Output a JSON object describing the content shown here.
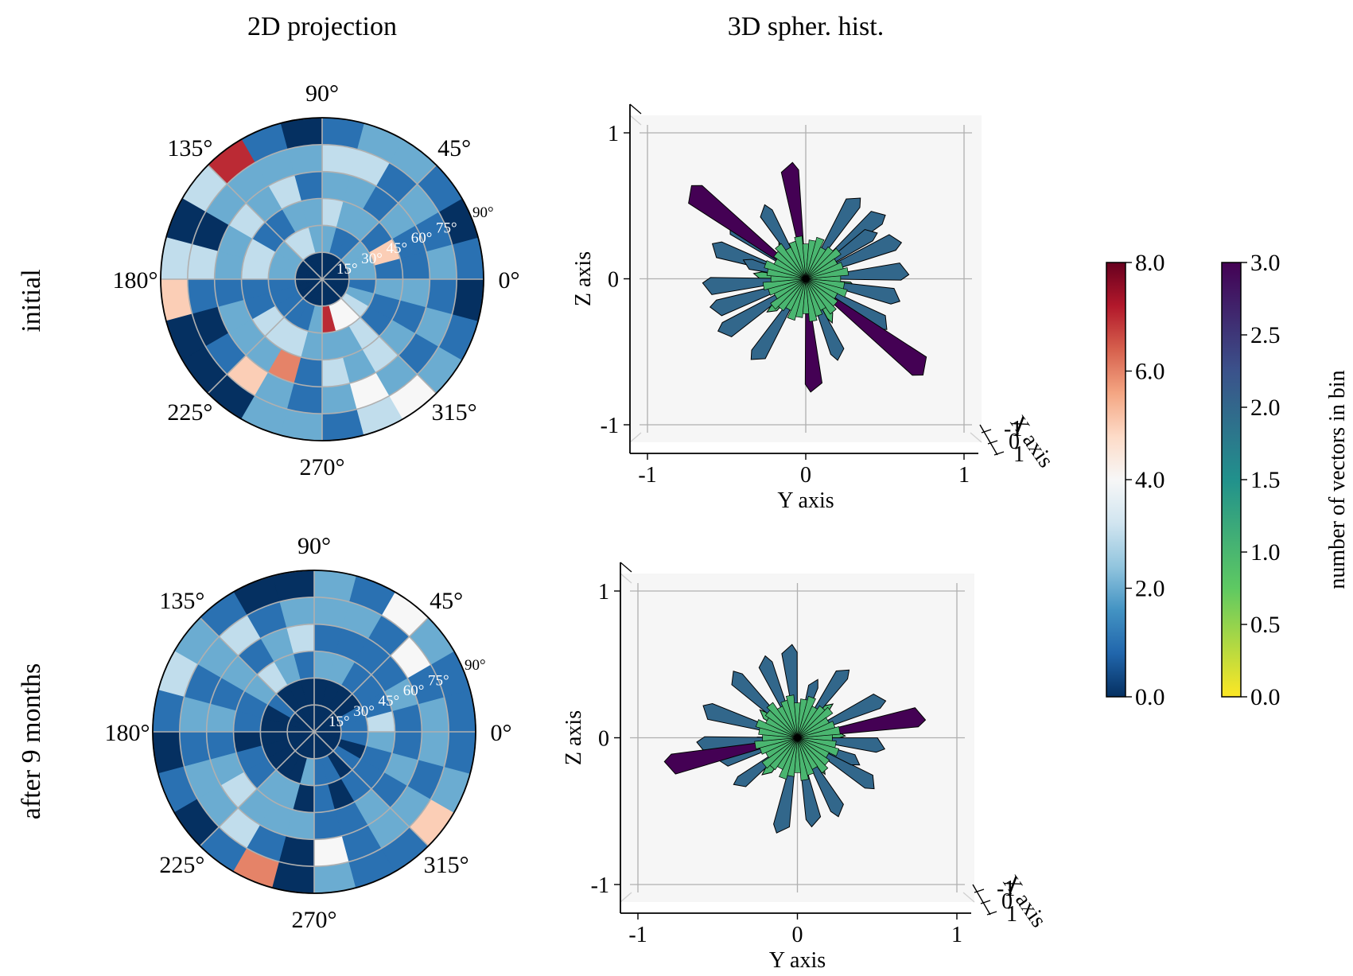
{
  "column_titles": [
    "2D projection",
    "3D spher. hist."
  ],
  "row_labels": [
    "initial",
    "after 9 months"
  ],
  "chart_data": [
    {
      "type": "heatmap",
      "projection": "polar",
      "panel": "initial / 2D projection",
      "azimuth_tick_labels": [
        "0°",
        "45°",
        "90°",
        "135°",
        "180°",
        "225°",
        "270°",
        "315°"
      ],
      "polar_ring_labels": [
        "15°",
        "30°",
        "45°",
        "60°",
        "75°",
        "90°"
      ],
      "azimuth_bins": 24,
      "polar_bins": 6,
      "colormap": "RdBu_r",
      "color_range": [
        0,
        8
      ],
      "counts": [
        [
          0,
          0,
          0,
          0,
          0,
          0,
          0,
          0,
          0,
          0,
          0,
          0,
          0,
          0,
          0,
          0,
          0,
          0,
          0,
          0,
          0,
          0,
          0,
          0
        ],
        [
          2,
          2,
          2,
          1,
          1,
          2,
          2,
          3,
          3,
          2,
          2,
          2,
          1,
          1,
          1,
          1,
          1,
          2,
          7,
          4,
          4,
          3,
          2,
          1
        ],
        [
          1,
          5,
          1,
          2,
          2,
          3,
          2,
          2,
          1,
          1,
          3,
          3,
          1,
          1,
          3,
          3,
          3,
          2,
          2,
          2,
          3,
          1,
          1,
          2
        ],
        [
          1,
          1,
          2,
          1,
          2,
          2,
          1,
          3,
          2,
          3,
          2,
          2,
          1,
          2,
          2,
          2,
          6,
          1,
          3,
          2,
          3,
          2,
          1,
          2
        ],
        [
          2,
          1,
          2,
          1,
          3,
          3,
          2,
          2,
          2,
          2,
          0,
          3,
          1,
          0,
          1,
          5,
          2,
          1,
          2,
          4,
          2,
          1,
          2,
          1
        ],
        [
          1,
          0,
          1,
          2,
          2,
          1,
          0,
          1,
          7,
          3,
          0,
          3,
          5,
          0,
          0,
          0,
          2,
          2,
          1,
          3,
          4,
          2,
          1,
          0
        ]
      ]
    },
    {
      "type": "heatmap",
      "projection": "polar",
      "panel": "after 9 months / 2D projection",
      "azimuth_tick_labels": [
        "0°",
        "45°",
        "90°",
        "135°",
        "180°",
        "225°",
        "270°",
        "315°"
      ],
      "polar_ring_labels": [
        "15°",
        "30°",
        "45°",
        "60°",
        "75°",
        "90°"
      ],
      "azimuth_bins": 24,
      "polar_bins": 6,
      "colormap": "RdBu_r",
      "color_range": [
        0,
        8
      ],
      "counts": [
        [
          0,
          0,
          0,
          0,
          0,
          0,
          0,
          0,
          0,
          0,
          0,
          0,
          0,
          0,
          0,
          0,
          0,
          0,
          0,
          0,
          0,
          0,
          0,
          0
        ],
        [
          1,
          1,
          0,
          0,
          0,
          0,
          0,
          0,
          0,
          1,
          0,
          0,
          0,
          0,
          0,
          0,
          0,
          2,
          1,
          1,
          0,
          1,
          0,
          1
        ],
        [
          3,
          1,
          1,
          1,
          2,
          2,
          1,
          2,
          3,
          2,
          1,
          1,
          0,
          1,
          1,
          2,
          2,
          0,
          1,
          0,
          1,
          1,
          1,
          2
        ],
        [
          1,
          2,
          1,
          1,
          1,
          1,
          3,
          2,
          1,
          2,
          1,
          2,
          1,
          2,
          3,
          2,
          2,
          2,
          1,
          1,
          2,
          1,
          2,
          1
        ],
        [
          2,
          1,
          4,
          1,
          2,
          2,
          2,
          1,
          3,
          2,
          1,
          2,
          1,
          2,
          2,
          3,
          1,
          0,
          4,
          1,
          2,
          2,
          1,
          2
        ],
        [
          1,
          1,
          2,
          4,
          1,
          2,
          0,
          0,
          1,
          2,
          3,
          1,
          0,
          1,
          0,
          1,
          6,
          0,
          2,
          1,
          1,
          5,
          2,
          1
        ]
      ]
    },
    {
      "type": "other",
      "description_type": "3D spherical histogram",
      "panel": "initial / 3D spher. hist.",
      "xlabel": "Y axis",
      "ylabel": "Z axis",
      "depth_label": "X axis",
      "x_ticks": [
        "-1",
        "0",
        "1"
      ],
      "y_ticks": [
        "-1",
        "0",
        "1"
      ],
      "depth_ticks": [
        "-1",
        "0",
        "1"
      ],
      "xlim": [
        -1,
        1
      ],
      "ylim": [
        -1,
        1
      ],
      "colormap": "viridis_r",
      "color_range": [
        0,
        3
      ],
      "vectors": [
        {
          "y": -0.7,
          "z": 0.58,
          "count": 3
        },
        {
          "y": -0.1,
          "z": 0.74,
          "count": 3
        },
        {
          "y": 0.05,
          "z": -0.72,
          "count": 3
        },
        {
          "y": 0.72,
          "z": -0.6,
          "count": 3
        },
        {
          "y": -0.55,
          "z": 0.2,
          "count": 2
        },
        {
          "y": -0.6,
          "z": -0.05,
          "count": 2
        },
        {
          "y": -0.55,
          "z": -0.2,
          "count": 2
        },
        {
          "y": -0.3,
          "z": -0.52,
          "count": 2
        },
        {
          "y": -0.45,
          "z": 0.35,
          "count": 2
        },
        {
          "y": -0.25,
          "z": 0.45,
          "count": 2
        },
        {
          "y": 0.3,
          "z": 0.52,
          "count": 2
        },
        {
          "y": 0.45,
          "z": 0.42,
          "count": 2
        },
        {
          "y": 0.55,
          "z": 0.25,
          "count": 2
        },
        {
          "y": 0.6,
          "z": 0.05,
          "count": 2
        },
        {
          "y": 0.55,
          "z": -0.12,
          "count": 2
        },
        {
          "y": 0.48,
          "z": -0.3,
          "count": 2
        },
        {
          "y": 0.2,
          "z": -0.5,
          "count": 2
        },
        {
          "y": -0.5,
          "z": -0.35,
          "count": 2
        },
        {
          "y": 0.4,
          "z": 0.3,
          "count": 2
        },
        {
          "y": -0.35,
          "z": 0.1,
          "count": 2
        },
        {
          "y": 0.25,
          "z": 0.2,
          "count": 1
        },
        {
          "y": -0.2,
          "z": -0.2,
          "count": 1
        },
        {
          "y": 0.15,
          "z": -0.25,
          "count": 1
        },
        {
          "y": -0.15,
          "z": 0.25,
          "count": 1
        },
        {
          "y": 0.28,
          "z": -0.05,
          "count": 1
        },
        {
          "y": -0.28,
          "z": 0.02,
          "count": 1
        }
      ]
    },
    {
      "type": "other",
      "description_type": "3D spherical histogram",
      "panel": "after 9 months / 3D spher. hist.",
      "xlabel": "Y axis",
      "ylabel": "Z axis",
      "depth_label": "X axis",
      "x_ticks": [
        "-1",
        "0",
        "1"
      ],
      "y_ticks": [
        "-1",
        "0",
        "1"
      ],
      "depth_ticks": [
        "-1",
        "0",
        "1"
      ],
      "xlim": [
        -1,
        1
      ],
      "ylim": [
        -1,
        1
      ],
      "colormap": "viridis_r",
      "color_range": [
        0,
        3
      ],
      "vectors": [
        {
          "y": -0.78,
          "z": -0.18,
          "count": 3
        },
        {
          "y": 0.75,
          "z": 0.14,
          "count": 3
        },
        {
          "y": -0.05,
          "z": 0.58,
          "count": 2
        },
        {
          "y": 0.28,
          "z": 0.43,
          "count": 2
        },
        {
          "y": -0.38,
          "z": 0.4,
          "count": 2
        },
        {
          "y": -0.55,
          "z": 0.18,
          "count": 2
        },
        {
          "y": -0.58,
          "z": -0.05,
          "count": 2
        },
        {
          "y": -0.35,
          "z": -0.3,
          "count": 2
        },
        {
          "y": -0.1,
          "z": -0.6,
          "count": 2
        },
        {
          "y": 0.1,
          "z": -0.55,
          "count": 2
        },
        {
          "y": 0.25,
          "z": -0.48,
          "count": 2
        },
        {
          "y": 0.45,
          "z": -0.3,
          "count": 2
        },
        {
          "y": 0.5,
          "z": -0.05,
          "count": 2
        },
        {
          "y": 0.5,
          "z": 0.25,
          "count": 2
        },
        {
          "y": -0.2,
          "z": 0.5,
          "count": 2
        },
        {
          "y": 0.1,
          "z": 0.35,
          "count": 2
        },
        {
          "y": -0.45,
          "z": -0.15,
          "count": 2
        },
        {
          "y": 0.35,
          "z": -0.15,
          "count": 2
        },
        {
          "y": 0.18,
          "z": 0.2,
          "count": 1
        },
        {
          "y": -0.2,
          "z": 0.15,
          "count": 1
        },
        {
          "y": 0.15,
          "z": -0.2,
          "count": 1
        },
        {
          "y": -0.18,
          "z": -0.22,
          "count": 1
        },
        {
          "y": 0.25,
          "z": 0.02,
          "count": 1
        },
        {
          "y": -0.25,
          "z": -0.02,
          "count": 1
        }
      ]
    }
  ],
  "colorbars": [
    {
      "colormap": "RdBu_r",
      "range": [
        0,
        8
      ],
      "ticks": [
        "0.0",
        "2.0",
        "4.0",
        "6.0",
        "8.0"
      ]
    },
    {
      "colormap": "viridis_r",
      "range": [
        0,
        3
      ],
      "ticks": [
        "0.0",
        "0.5",
        "1.0",
        "1.5",
        "2.0",
        "2.5",
        "3.0"
      ],
      "label": "number of vectors in bin"
    }
  ],
  "colors": {
    "bar_edge": "#000000",
    "grid": "#b0b0b0",
    "pane": "#f6f6f6"
  }
}
